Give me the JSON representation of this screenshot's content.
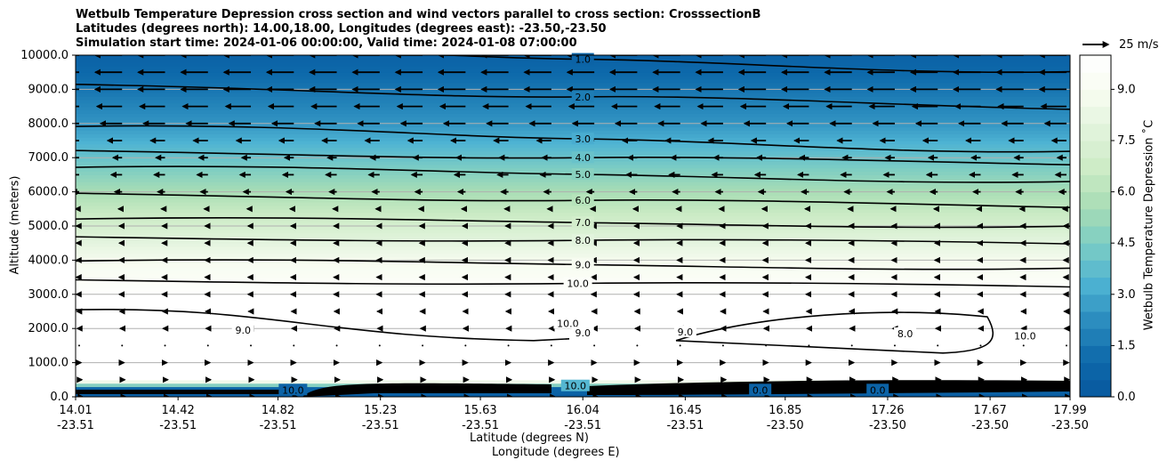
{
  "chart_data": {
    "type": "contour",
    "title_lines": [
      "Wetbulb Temperature Depression cross section and wind vectors parallel to cross section: CrosssectionB",
      "Latitudes (degrees north): 14.00,18.00, Longitudes (degrees east): -23.50,-23.50",
      "Simulation start time: 2024-01-06 00:00:00, Valid time: 2024-01-08 07:00:00"
    ],
    "xlabel_lat": "Latitude (degrees N)",
    "xlabel_lon": "Longitude (degrees E)",
    "ylabel": "Altitude (meters)",
    "colorbar_label": "Wetbulb Temperature Depression $^\\circ$C",
    "colorbar_label_display": "Wetbulb Temperature Depression ˚C",
    "quiver_key_label": "25 m/s",
    "ylim": [
      0,
      10000
    ],
    "yticks": [
      "0.0",
      "1000.0",
      "2000.0",
      "3000.0",
      "4000.0",
      "5000.0",
      "6000.0",
      "7000.0",
      "8000.0",
      "9000.0",
      "10000.0"
    ],
    "xtick_lats": [
      "14.01",
      "14.42",
      "14.82",
      "15.23",
      "15.63",
      "16.04",
      "16.45",
      "16.85",
      "17.26",
      "17.67",
      "17.99"
    ],
    "xtick_lons": [
      "-23.51",
      "-23.51",
      "-23.51",
      "-23.51",
      "-23.51",
      "-23.51",
      "-23.51",
      "-23.50",
      "-23.50",
      "-23.50",
      "-23.50"
    ],
    "colorbar_ticks": [
      "0.0",
      "1.5",
      "3.0",
      "4.5",
      "6.0",
      "7.5",
      "9.0"
    ],
    "colorbar_range": [
      0,
      10
    ],
    "colormap": [
      "#08589e",
      "#0e6aab",
      "#2b8cbe",
      "#4eb3d3",
      "#7bccc4",
      "#a8ddb5",
      "#ccebc5",
      "#e0f3db",
      "#f7fcf0",
      "#ffffff"
    ],
    "profile": [
      {
        "alt": 0,
        "value": 0.3
      },
      {
        "alt": 250,
        "value": 0.8
      },
      {
        "alt": 500,
        "value": 10.5
      },
      {
        "alt": 2600,
        "value": 10.5
      },
      {
        "alt": 3000,
        "value": 9.9
      },
      {
        "alt": 4000,
        "value": 8.8
      },
      {
        "alt": 5000,
        "value": 7.2
      },
      {
        "alt": 6000,
        "value": 5.6
      },
      {
        "alt": 7000,
        "value": 4.0
      },
      {
        "alt": 8000,
        "value": 2.5
      },
      {
        "alt": 9000,
        "value": 1.5
      },
      {
        "alt": 10000,
        "value": 0.6
      }
    ],
    "contour_labels": [
      {
        "text": "1.0",
        "lat": 16.04,
        "alt": 9880
      },
      {
        "text": "2.0",
        "lat": 16.04,
        "alt": 8780
      },
      {
        "text": "3.0",
        "lat": 16.04,
        "alt": 7550
      },
      {
        "text": "4.0",
        "lat": 16.04,
        "alt": 7000
      },
      {
        "text": "5.0",
        "lat": 16.04,
        "alt": 6510
      },
      {
        "text": "6.0",
        "lat": 16.04,
        "alt": 5750
      },
      {
        "text": "7.0",
        "lat": 16.04,
        "alt": 5100
      },
      {
        "text": "8.0",
        "lat": 16.04,
        "alt": 4580
      },
      {
        "text": "9.0",
        "lat": 16.04,
        "alt": 3870
      },
      {
        "text": "10.0",
        "lat": 16.02,
        "alt": 3320
      },
      {
        "text": "10.0",
        "lat": 15.98,
        "alt": 2150
      },
      {
        "text": "9.0",
        "lat": 16.04,
        "alt": 1870
      },
      {
        "text": "9.0",
        "lat": 14.68,
        "alt": 1950
      },
      {
        "text": "9.0",
        "lat": 16.45,
        "alt": 1900
      },
      {
        "text": "8.0",
        "lat": 17.33,
        "alt": 1850
      },
      {
        "text": "10.0",
        "lat": 17.81,
        "alt": 1780
      },
      {
        "text": "0.0",
        "lat": 16.75,
        "alt": 200
      },
      {
        "text": "0.0",
        "lat": 17.22,
        "alt": 200
      },
      {
        "text": "10.0",
        "lat": 14.88,
        "alt": 200
      },
      {
        "text": "10.0",
        "lat": 16.01,
        "alt": 320
      }
    ],
    "wind_u_rows": [
      {
        "alt": 0,
        "u": 2
      },
      {
        "alt": 500,
        "u": 1.5
      },
      {
        "alt": 1000,
        "u": 1
      },
      {
        "alt": 1500,
        "u": 0
      },
      {
        "alt": 2000,
        "u": -1
      },
      {
        "alt": 2500,
        "u": -1.2
      },
      {
        "alt": 3000,
        "u": -1.5
      },
      {
        "alt": 3500,
        "u": -1.5
      },
      {
        "alt": 4000,
        "u": -1.5
      },
      {
        "alt": 4500,
        "u": -1.5
      },
      {
        "alt": 5000,
        "u": -1.5
      },
      {
        "alt": 5500,
        "u": -2
      },
      {
        "alt": 6000,
        "u": -4
      },
      {
        "alt": 6500,
        "u": -6
      },
      {
        "alt": 7000,
        "u": -5
      },
      {
        "alt": 7500,
        "u": -8
      },
      {
        "alt": 8000,
        "u": -12
      },
      {
        "alt": 8500,
        "u": -14
      },
      {
        "alt": 9000,
        "u": -15
      },
      {
        "alt": 9500,
        "u": -15
      },
      {
        "alt": 10000,
        "u": -15
      }
    ]
  },
  "colors": {
    "gridline": "#b0b0b0",
    "contour": "#000000"
  }
}
